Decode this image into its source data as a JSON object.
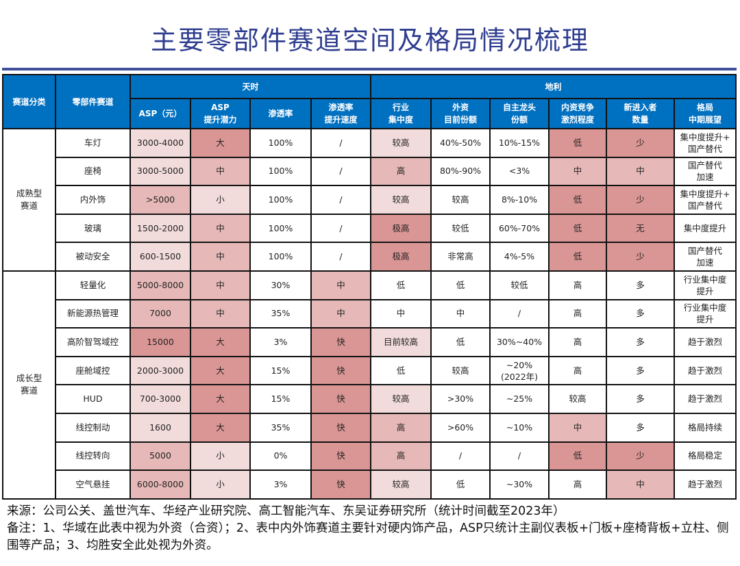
{
  "title": "主要零部件赛道空间及格局情况梳理",
  "colors": {
    "header": "#0070c0",
    "title": "#2f3d8f",
    "shade": [
      "#ffffff",
      "#f2dcdb",
      "#e6b9b8",
      "#da9694"
    ]
  },
  "header": {
    "category": "赛道分类",
    "part": "零部件赛道",
    "group_tianshi": "天时",
    "group_dili": "地利",
    "cols": [
      "ASP（元）",
      "ASP\n提升潜力",
      "渗透率",
      "渗透率\n提升速度",
      "行业\n集中度",
      "外资\n目前份额",
      "自主龙头\n份额",
      "内资竞争\n激烈程度",
      "新进入者\n数量",
      "格局\n中期展望"
    ]
  },
  "groups": [
    {
      "name": "成熟型\n赛道",
      "rows": [
        {
          "cells": [
            "车灯",
            "3000-4000",
            "大",
            "100%",
            "/",
            "较高",
            "40%-50%",
            "10%-15%",
            "低",
            "少",
            "集中度提升+\n国产替代"
          ],
          "shade": [
            0,
            1,
            3,
            0,
            0,
            1,
            0,
            0,
            3,
            3,
            0
          ]
        },
        {
          "cells": [
            "座椅",
            "3000-5000",
            "中",
            "100%",
            "/",
            "高",
            "80%-90%",
            "<3%",
            "中",
            "中",
            "国产替代\n加速"
          ],
          "shade": [
            0,
            1,
            2,
            0,
            0,
            2,
            0,
            0,
            2,
            2,
            0
          ]
        },
        {
          "cells": [
            "内外饰",
            ">5000",
            "小",
            "100%",
            "/",
            "较高",
            "较高",
            "8%-10%",
            "低",
            "少",
            "集中度提升+\n国产替代"
          ],
          "shade": [
            0,
            2,
            1,
            0,
            0,
            1,
            0,
            0,
            3,
            3,
            0
          ]
        },
        {
          "cells": [
            "玻璃",
            "1500-2000",
            "中",
            "100%",
            "/",
            "极高",
            "较低",
            "60%-70%",
            "低",
            "无",
            "集中度提升"
          ],
          "shade": [
            0,
            1,
            2,
            0,
            0,
            3,
            0,
            0,
            3,
            3,
            0
          ]
        },
        {
          "cells": [
            "被动安全",
            "600-1500",
            "中",
            "100%",
            "/",
            "极高",
            "非常高",
            "4%-5%",
            "低",
            "少",
            "国产替代\n加速"
          ],
          "shade": [
            0,
            1,
            2,
            0,
            0,
            3,
            0,
            0,
            3,
            3,
            0
          ]
        }
      ]
    },
    {
      "name": "成长型\n赛道",
      "rows": [
        {
          "cells": [
            "轻量化",
            "5000-8000",
            "中",
            "30%",
            "中",
            "低",
            "低",
            "较低",
            "高",
            "多",
            "行业集中度\n提升"
          ],
          "shade": [
            0,
            2,
            2,
            0,
            2,
            0,
            0,
            0,
            0,
            0,
            0
          ]
        },
        {
          "cells": [
            "新能源热管理",
            "7000",
            "中",
            "35%",
            "中",
            "中",
            "中",
            "/",
            "高",
            "多",
            "行业集中度\n提升"
          ],
          "shade": [
            0,
            2,
            2,
            0,
            2,
            0,
            0,
            0,
            0,
            0,
            0
          ]
        },
        {
          "cells": [
            "高阶智驾域控",
            "15000",
            "大",
            "3%",
            "快",
            "目前较高",
            "低",
            "30%~40%",
            "高",
            "多",
            "趋于激烈"
          ],
          "shade": [
            0,
            3,
            3,
            0,
            3,
            1,
            0,
            0,
            0,
            0,
            0
          ]
        },
        {
          "cells": [
            "座舱域控",
            "2000-3000",
            "大",
            "15%",
            "快",
            "低",
            "较高",
            "~20%\n(2022年)",
            "高",
            "多",
            "趋于激烈"
          ],
          "shade": [
            0,
            1,
            3,
            0,
            3,
            0,
            0,
            0,
            0,
            0,
            0
          ]
        },
        {
          "cells": [
            "HUD",
            "700-3000",
            "大",
            "15%",
            "快",
            "较高",
            ">30%",
            "~25%",
            "较高",
            "多",
            "趋于激烈"
          ],
          "shade": [
            0,
            1,
            3,
            0,
            3,
            1,
            0,
            0,
            0,
            0,
            0
          ]
        },
        {
          "cells": [
            "线控制动",
            "1600",
            "大",
            "35%",
            "快",
            "高",
            ">60%",
            "~10%",
            "中",
            "多",
            "格局持续"
          ],
          "shade": [
            0,
            1,
            3,
            0,
            3,
            2,
            0,
            0,
            2,
            0,
            0
          ]
        },
        {
          "cells": [
            "线控转向",
            "5000",
            "小",
            "0%",
            "快",
            "高",
            "/",
            "/",
            "低",
            "少",
            "格局稳定"
          ],
          "shade": [
            0,
            2,
            1,
            0,
            3,
            2,
            0,
            0,
            3,
            3,
            0
          ]
        },
        {
          "cells": [
            "空气悬挂",
            "6000-8000",
            "小",
            "3%",
            "快",
            "较高",
            "低",
            "~30%",
            "高",
            "中",
            "趋于激烈"
          ],
          "shade": [
            0,
            2,
            1,
            0,
            3,
            1,
            0,
            0,
            0,
            2,
            0
          ]
        }
      ]
    }
  ],
  "footnote": {
    "source": "来源：公司公关、盖世汽车、华经产业研究院、高工智能汽车、东吴证券研究所（统计时间截至2023年）",
    "note": "备注：1、华域在此表中视为外资（合资）；2、表中内外饰赛道主要针对硬内饰产品，ASP只统计主副仪表板+门板+座椅背板+立柱、侧围等产品；3、均胜安全此处视为外资。"
  }
}
